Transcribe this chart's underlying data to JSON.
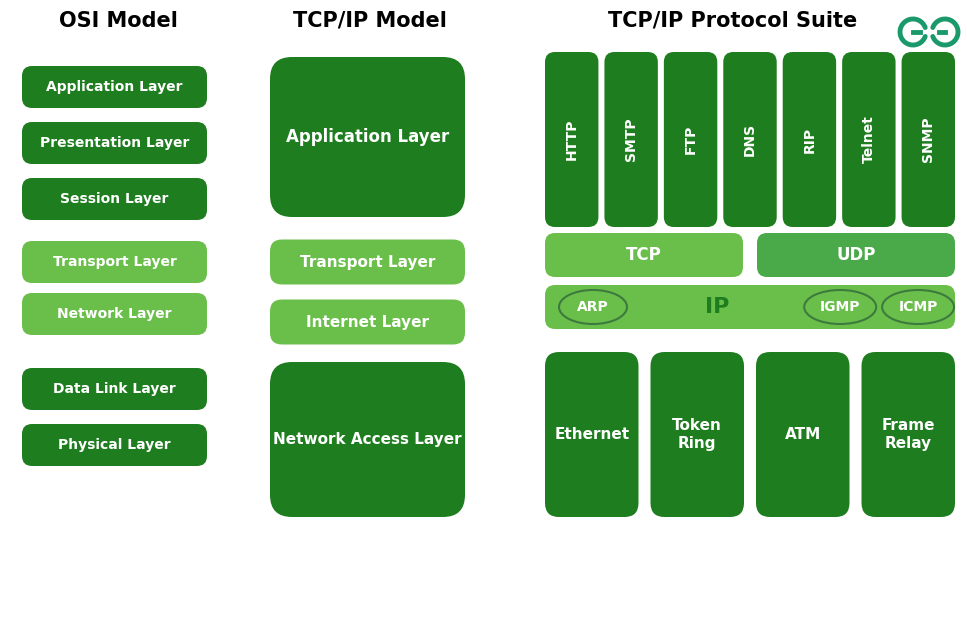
{
  "bg_color": "#ffffff",
  "dark_green": "#1e7d1e",
  "mid_green": "#4aaa4a",
  "light_green": "#6abf4b",
  "transport_green": "#7dc44a",
  "internet_green": "#7dc44a",
  "title_color": "#000000",
  "logo_color": "#1a9a6a",
  "osi_title": "OSI Model",
  "tcp_title": "TCP/IP Model",
  "suite_title": "TCP/IP Protocol Suite",
  "osi_layers": [
    "Application Layer",
    "Presentation Layer",
    "Session Layer",
    "Transport Layer",
    "Network Layer",
    "Data Link Layer",
    "Physical Layer"
  ],
  "osi_colors": [
    "dark",
    "dark",
    "dark",
    "light",
    "light",
    "dark",
    "dark"
  ],
  "app_protocols": [
    "HTTP",
    "SMTP",
    "FTP",
    "DNS",
    "RIP",
    "Telnet",
    "SNMP"
  ],
  "network_access": [
    "Ethernet",
    "Token\nRing",
    "ATM",
    "Frame\nRelay"
  ]
}
